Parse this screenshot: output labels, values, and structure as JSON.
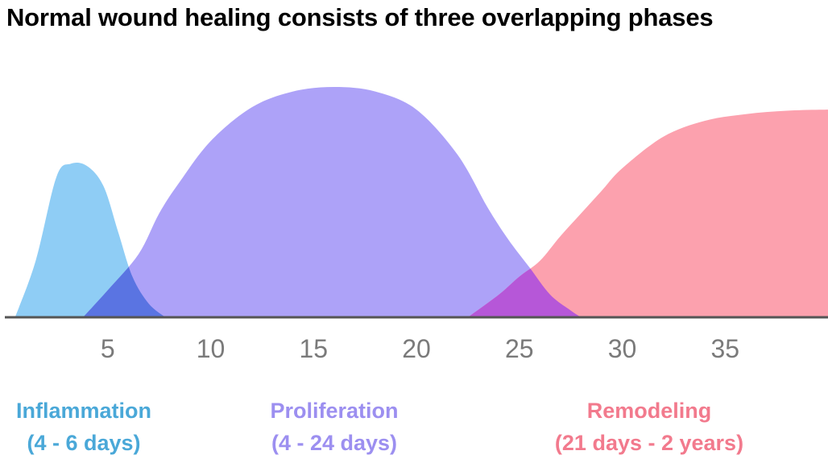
{
  "title": "Normal wound healing consists of three overlapping phases",
  "chart_data": {
    "type": "area",
    "title": "Normal wound healing consists of three overlapping phases",
    "xlabel": "",
    "ylabel": "",
    "xlim": [
      0,
      40
    ],
    "ylim": [
      0,
      1.12
    ],
    "x_ticks": [
      5,
      10,
      15,
      20,
      25,
      30,
      35
    ],
    "x_tick_labels": [
      "5",
      "10",
      "15",
      "20",
      "25",
      "30",
      "35"
    ],
    "grid": false,
    "series": [
      {
        "name": "Inflammation",
        "range_label": "(4 - 6 days)",
        "color": "#8fcdf5",
        "label_color": "#4aa8d8",
        "x": [
          0.5,
          1.5,
          2.5,
          3.2,
          4.0,
          4.8,
          5.5,
          6.2,
          7.0,
          7.8
        ],
        "y": [
          0.0,
          0.25,
          0.62,
          0.68,
          0.67,
          0.58,
          0.38,
          0.18,
          0.06,
          0.0
        ]
      },
      {
        "name": "Proliferation",
        "range_label": "(4 - 24 days)",
        "color": "#ada2f8",
        "label_color": "#9c8ff0",
        "x": [
          3.8,
          5.0,
          6.5,
          7.5,
          8.5,
          10,
          12,
          14,
          16,
          18,
          20,
          22,
          23.5,
          24.5,
          25.5,
          26.5,
          27.5,
          28.0
        ],
        "y": [
          0.0,
          0.12,
          0.28,
          0.46,
          0.6,
          0.78,
          0.93,
          1.0,
          1.02,
          1.0,
          0.92,
          0.72,
          0.48,
          0.34,
          0.22,
          0.1,
          0.03,
          0.0
        ]
      },
      {
        "name": "Remodeling",
        "range_label": "(21 days - 2 years)",
        "color": "#fca1ae",
        "label_color": "#f27a8d",
        "x": [
          22.5,
          24,
          25,
          26,
          27,
          28,
          29,
          30,
          32,
          34,
          36,
          38,
          40
        ],
        "y": [
          0.0,
          0.1,
          0.18,
          0.25,
          0.36,
          0.46,
          0.56,
          0.66,
          0.8,
          0.87,
          0.9,
          0.915,
          0.92
        ]
      }
    ],
    "overlaps": [
      {
        "series": [
          "Inflammation",
          "Proliferation"
        ],
        "color": "#5a74e2"
      },
      {
        "series": [
          "Proliferation",
          "Remodeling"
        ],
        "color": "#b657d8"
      }
    ],
    "legend_position": "bottom"
  }
}
